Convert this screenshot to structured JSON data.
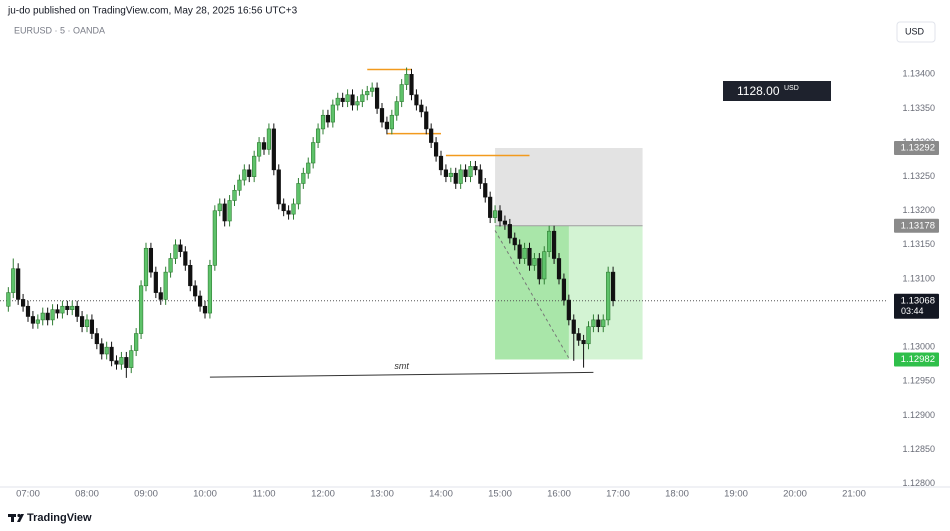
{
  "header": "ju-do published on TradingView.com, May 28, 2025 16:56 UTC+3",
  "footer": "TradingView",
  "chart_data": {
    "type": "candlestick",
    "symbol": "EURUSD · 5 · OANDA",
    "currency": "USD",
    "up_color": "#5ec26a",
    "down_color": "#111111",
    "grid": false,
    "ylim": [
      1.12795,
      1.13443
    ],
    "yticks": [
      {
        "value": 1.134,
        "label": "1.13400"
      },
      {
        "value": 1.1335,
        "label": "1.13350"
      },
      {
        "value": 1.133,
        "label": "1.13300"
      },
      {
        "value": 1.1325,
        "label": "1.13250"
      },
      {
        "value": 1.132,
        "label": "1.13200"
      },
      {
        "value": 1.1315,
        "label": "1.13150"
      },
      {
        "value": 1.131,
        "label": "1.13100"
      },
      {
        "value": 1.1305,
        "label": "1.13050"
      },
      {
        "value": 1.13,
        "label": "1.13000"
      },
      {
        "value": 1.1295,
        "label": "1.12950"
      },
      {
        "value": 1.129,
        "label": "1.12900"
      },
      {
        "value": 1.1285,
        "label": "1.12850"
      },
      {
        "value": 1.128,
        "label": "1.12800"
      }
    ],
    "xticks": [
      "07:00",
      "08:00",
      "09:00",
      "10:00",
      "11:00",
      "12:00",
      "13:00",
      "14:00",
      "15:00",
      "16:00",
      "17:00",
      "18:00",
      "19:00",
      "20:00",
      "21:00"
    ],
    "x": [
      "06:40",
      "06:45",
      "06:50",
      "06:55",
      "07:00",
      "07:05",
      "07:10",
      "07:15",
      "07:20",
      "07:25",
      "07:30",
      "07:35",
      "07:40",
      "07:45",
      "07:50",
      "07:55",
      "08:00",
      "08:05",
      "08:10",
      "08:15",
      "08:20",
      "08:25",
      "08:30",
      "08:35",
      "08:40",
      "08:45",
      "08:50",
      "08:55",
      "09:00",
      "09:05",
      "09:10",
      "09:15",
      "09:20",
      "09:25",
      "09:30",
      "09:35",
      "09:40",
      "09:45",
      "09:50",
      "09:55",
      "10:00",
      "10:05",
      "10:10",
      "10:15",
      "10:20",
      "10:25",
      "10:30",
      "10:35",
      "10:40",
      "10:45",
      "10:50",
      "10:55",
      "11:00",
      "11:05",
      "11:10",
      "11:15",
      "11:20",
      "11:25",
      "11:30",
      "11:35",
      "11:40",
      "11:45",
      "11:50",
      "11:55",
      "12:00",
      "12:05",
      "12:10",
      "12:15",
      "12:20",
      "12:25",
      "12:30",
      "12:35",
      "12:40",
      "12:45",
      "12:50",
      "12:55",
      "13:00",
      "13:05",
      "13:10",
      "13:15",
      "13:20",
      "13:25",
      "13:30",
      "13:35",
      "13:40",
      "13:45",
      "13:50",
      "13:55",
      "14:00",
      "14:05",
      "14:10",
      "14:15",
      "14:20",
      "14:25",
      "14:30",
      "14:35",
      "14:40",
      "14:45",
      "14:50",
      "14:55",
      "15:00",
      "15:05",
      "15:10",
      "15:15",
      "15:20",
      "15:25",
      "15:30",
      "15:35",
      "15:40",
      "15:45",
      "15:50",
      "15:55",
      "16:00",
      "16:05",
      "16:10",
      "16:15",
      "16:20",
      "16:25",
      "16:30",
      "16:35",
      "16:40",
      "16:45",
      "16:50",
      "16:55"
    ],
    "open": [
      1.1306,
      1.1308,
      1.13115,
      1.1307,
      1.1306,
      1.13045,
      1.13035,
      1.1304,
      1.1305,
      1.1304,
      1.13055,
      1.1305,
      1.1306,
      1.13055,
      1.1306,
      1.13045,
      1.1303,
      1.1304,
      1.1302,
      1.13005,
      1.1299,
      1.13,
      1.1298,
      1.12975,
      1.12985,
      1.1297,
      1.12995,
      1.1302,
      1.1309,
      1.13145,
      1.1311,
      1.1308,
      1.1307,
      1.1311,
      1.1313,
      1.1315,
      1.1314,
      1.1312,
      1.1309,
      1.13075,
      1.1306,
      1.1305,
      1.1312,
      1.132,
      1.1321,
      1.13185,
      1.13215,
      1.1323,
      1.13245,
      1.1326,
      1.1325,
      1.1328,
      1.133,
      1.1329,
      1.1332,
      1.1326,
      1.1321,
      1.132,
      1.13195,
      1.1321,
      1.1324,
      1.13255,
      1.1327,
      1.133,
      1.1332,
      1.1334,
      1.1333,
      1.13355,
      1.13365,
      1.1336,
      1.1337,
      1.13355,
      1.1336,
      1.1337,
      1.13375,
      1.1338,
      1.1335,
      1.1333,
      1.1332,
      1.1334,
      1.1336,
      1.13385,
      1.134,
      1.1337,
      1.13355,
      1.13345,
      1.1332,
      1.133,
      1.1328,
      1.1326,
      1.1325,
      1.13255,
      1.1324,
      1.1326,
      1.1325,
      1.13265,
      1.1326,
      1.1324,
      1.1322,
      1.1319,
      1.132,
      1.13185,
      1.1318,
      1.1316,
      1.1315,
      1.1313,
      1.13145,
      1.1312,
      1.1313,
      1.131,
      1.1314,
      1.1317,
      1.1313,
      1.131,
      1.13069,
      1.1304,
      1.1302,
      1.1301,
      1.13005,
      1.1303,
      1.1304,
      1.1303,
      1.1304,
      1.1311
    ],
    "high": [
      1.13088,
      1.1313,
      1.13123,
      1.13078,
      1.13068,
      1.13053,
      1.13048,
      1.13058,
      1.13058,
      1.13063,
      1.13063,
      1.13068,
      1.13068,
      1.13068,
      1.13068,
      1.13053,
      1.13048,
      1.13048,
      1.13028,
      1.13013,
      1.13008,
      1.13008,
      1.12988,
      1.12993,
      1.12993,
      1.13003,
      1.13028,
      1.13098,
      1.13153,
      1.13153,
      1.13118,
      1.13088,
      1.13118,
      1.13138,
      1.13158,
      1.13158,
      1.13148,
      1.13128,
      1.13098,
      1.13083,
      1.13068,
      1.13128,
      1.13208,
      1.13218,
      1.13218,
      1.13223,
      1.13238,
      1.13253,
      1.13268,
      1.13268,
      1.13288,
      1.13308,
      1.13308,
      1.13328,
      1.13328,
      1.13268,
      1.13218,
      1.13208,
      1.13218,
      1.13248,
      1.13263,
      1.13278,
      1.13308,
      1.13328,
      1.13348,
      1.13348,
      1.13363,
      1.13373,
      1.13373,
      1.13378,
      1.13378,
      1.13368,
      1.13378,
      1.13383,
      1.13388,
      1.13388,
      1.13358,
      1.13338,
      1.13348,
      1.13368,
      1.13393,
      1.1341,
      1.13408,
      1.13378,
      1.13363,
      1.13353,
      1.13328,
      1.13308,
      1.13288,
      1.13268,
      1.13263,
      1.13263,
      1.13268,
      1.13268,
      1.13273,
      1.13273,
      1.13268,
      1.13248,
      1.13228,
      1.13208,
      1.13208,
      1.13193,
      1.13188,
      1.13168,
      1.13158,
      1.13153,
      1.13153,
      1.13138,
      1.13138,
      1.13148,
      1.13178,
      1.13178,
      1.13138,
      1.13108,
      1.13077,
      1.13048,
      1.13028,
      1.13018,
      1.13038,
      1.13048,
      1.13048,
      1.13048,
      1.13118,
      1.13118
    ],
    "low": [
      1.13052,
      1.13072,
      1.13062,
      1.13052,
      1.13037,
      1.13027,
      1.13027,
      1.13032,
      1.13032,
      1.13032,
      1.13042,
      1.13042,
      1.13047,
      1.13047,
      1.13037,
      1.13022,
      1.13022,
      1.13012,
      1.12997,
      1.12982,
      1.12982,
      1.12972,
      1.12967,
      1.12967,
      1.12955,
      1.12962,
      1.12987,
      1.13012,
      1.13082,
      1.13102,
      1.13072,
      1.13062,
      1.13062,
      1.13102,
      1.13122,
      1.13132,
      1.13112,
      1.13082,
      1.13067,
      1.13052,
      1.13042,
      1.13042,
      1.13112,
      1.13192,
      1.13177,
      1.13177,
      1.13207,
      1.13222,
      1.13237,
      1.13242,
      1.13242,
      1.13272,
      1.13282,
      1.13282,
      1.13252,
      1.13202,
      1.13192,
      1.13187,
      1.13187,
      1.13202,
      1.13232,
      1.13247,
      1.13262,
      1.13292,
      1.13312,
      1.13322,
      1.13322,
      1.13347,
      1.13352,
      1.13352,
      1.13347,
      1.13347,
      1.13352,
      1.13362,
      1.13367,
      1.13342,
      1.13322,
      1.13312,
      1.13312,
      1.13332,
      1.13352,
      1.13377,
      1.13362,
      1.13347,
      1.13337,
      1.13312,
      1.13292,
      1.13272,
      1.13252,
      1.13242,
      1.13242,
      1.13232,
      1.13232,
      1.13242,
      1.13242,
      1.13252,
      1.13232,
      1.13212,
      1.13182,
      1.13182,
      1.13177,
      1.13172,
      1.13152,
      1.13142,
      1.13122,
      1.13122,
      1.13112,
      1.13112,
      1.13092,
      1.13092,
      1.13132,
      1.13122,
      1.13092,
      1.13061,
      1.13032,
      1.1298,
      1.13002,
      1.1297,
      1.12997,
      1.13022,
      1.13022,
      1.13022,
      1.13032,
      1.1306
    ],
    "close": [
      1.1308,
      1.13115,
      1.1307,
      1.1306,
      1.13045,
      1.13035,
      1.1304,
      1.1305,
      1.1304,
      1.13055,
      1.1305,
      1.1306,
      1.13055,
      1.1306,
      1.13045,
      1.1303,
      1.1304,
      1.1302,
      1.13005,
      1.1299,
      1.13,
      1.1298,
      1.12975,
      1.12985,
      1.1297,
      1.12995,
      1.1302,
      1.1309,
      1.13145,
      1.1311,
      1.1308,
      1.1307,
      1.1311,
      1.1313,
      1.1315,
      1.1314,
      1.1312,
      1.1309,
      1.13075,
      1.1306,
      1.1305,
      1.1312,
      1.132,
      1.1321,
      1.13185,
      1.13215,
      1.1323,
      1.13245,
      1.1326,
      1.1325,
      1.1328,
      1.133,
      1.1329,
      1.1332,
      1.1326,
      1.1321,
      1.132,
      1.13195,
      1.1321,
      1.1324,
      1.13255,
      1.1327,
      1.133,
      1.1332,
      1.1334,
      1.1333,
      1.13355,
      1.13365,
      1.1336,
      1.1337,
      1.13355,
      1.1336,
      1.1337,
      1.13375,
      1.1338,
      1.1335,
      1.1333,
      1.1332,
      1.1334,
      1.1336,
      1.13385,
      1.134,
      1.1337,
      1.13355,
      1.13345,
      1.1332,
      1.133,
      1.1328,
      1.1326,
      1.1325,
      1.13255,
      1.1324,
      1.1326,
      1.1325,
      1.13265,
      1.1326,
      1.1324,
      1.1322,
      1.1319,
      1.132,
      1.13185,
      1.1318,
      1.1316,
      1.1315,
      1.1313,
      1.13145,
      1.1312,
      1.1313,
      1.131,
      1.1314,
      1.1317,
      1.1313,
      1.131,
      1.13069,
      1.1304,
      1.1302,
      1.1301,
      1.13005,
      1.1303,
      1.1304,
      1.1303,
      1.1304,
      1.1311,
      1.13068
    ],
    "last_price": 1.13068,
    "countdown": "03:44",
    "position": {
      "start": "14:55",
      "filled_to": "16:10",
      "end": "17:25",
      "entry": 1.13178,
      "stop": 1.13292,
      "target": 1.12982,
      "pnl": {
        "value": 1128,
        "label": "1128.00"
      },
      "pnl_unit": "USD"
    },
    "levels": [
      {
        "from": "12:45",
        "to": "13:30",
        "price": 1.13407,
        "color": "#f29a1d"
      },
      {
        "from": "13:05",
        "to": "14:00",
        "price": 1.13313,
        "color": "#f29a1d"
      },
      {
        "from": "14:05",
        "to": "15:30",
        "price": 1.13281,
        "color": "#f29a1d"
      }
    ],
    "smt": {
      "label": "smt",
      "x": [
        "10:05",
        "16:35"
      ],
      "y": [
        1.12956,
        1.12963
      ]
    },
    "dashed": {
      "x": [
        "14:55",
        "16:10"
      ],
      "y": [
        1.13171,
        1.12984
      ]
    }
  }
}
